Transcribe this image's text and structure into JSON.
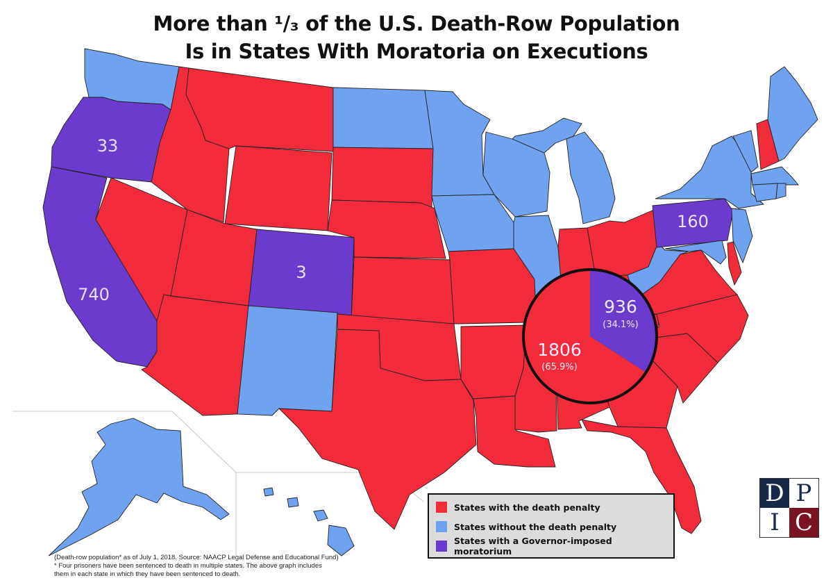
{
  "title": {
    "line1": "More than ¹/₃ of the U.S. Death-Row Population",
    "line2": "Is in States With Moratoria on Executions"
  },
  "colors": {
    "death_penalty": "#f12b3a",
    "no_death_penalty": "#6fa3f0",
    "moratorium": "#6a3bcc"
  },
  "moratorium_states": [
    {
      "state": "Oregon",
      "count": "33"
    },
    {
      "state": "California",
      "count": "740"
    },
    {
      "state": "Colorado",
      "count": "3"
    },
    {
      "state": "Pennsylvania",
      "count": "160"
    }
  ],
  "pie": {
    "death_penalty_states": {
      "count": "1806",
      "percent": "(65.9%)",
      "share": 0.659
    },
    "moratorium_states": {
      "count": "936",
      "percent": "(34.1%)",
      "share": 0.341
    }
  },
  "legend": [
    {
      "label": "States with the death penalty",
      "color": "#f12b3a"
    },
    {
      "label": "States without the death penalty",
      "color": "#6fa3f0"
    },
    {
      "label": "States with a Governor-imposed moratorium",
      "color": "#6a3bcc"
    }
  ],
  "footnote": {
    "line1": "(Death-row population* as of July 1, 2018. Source: NAACP Legal Defense and Educational Fund)",
    "line2": "* Four prisoners have been sentenced to death in multiple states. The above graph includes",
    "line3": "them in each state in which they have been sentenced to death."
  },
  "logo": [
    "D",
    "P",
    "I",
    "C"
  ]
}
